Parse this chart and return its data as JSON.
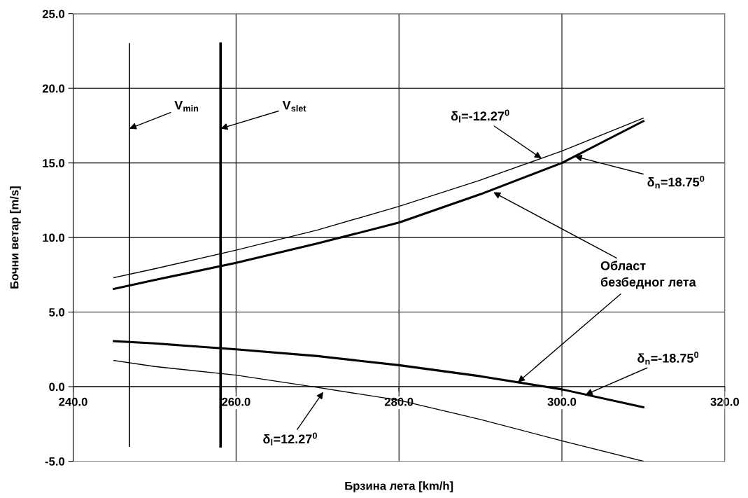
{
  "chart_data": {
    "type": "line",
    "xlabel": "Брзина лета [km/h]",
    "ylabel": "Бочни ветар [m/s]",
    "xlim": [
      240,
      320
    ],
    "ylim": [
      -5,
      25
    ],
    "xticks": [
      {
        "value": 240,
        "label": "240.0"
      },
      {
        "value": 260,
        "label": "260.0"
      },
      {
        "value": 280,
        "label": "280.0"
      },
      {
        "value": 300,
        "label": "300.0"
      },
      {
        "value": 320,
        "label": "320.0"
      }
    ],
    "yticks": [
      {
        "value": -5,
        "label": "-5.0"
      },
      {
        "value": 0,
        "label": "0.0"
      },
      {
        "value": 5,
        "label": "5.0"
      },
      {
        "value": 10,
        "label": "10.0"
      },
      {
        "value": 15,
        "label": "15.0"
      },
      {
        "value": 20,
        "label": "20.0"
      },
      {
        "value": 25,
        "label": "25.0"
      }
    ],
    "grid": true,
    "legend": false,
    "marker": "none",
    "line_style": "solid",
    "series": [
      {
        "color": "#000000",
        "x": [
          245,
          250,
          260,
          270,
          280,
          290,
          300,
          310
        ],
        "values": [
          7.31,
          7.9,
          9.15,
          10.5,
          12.09,
          13.85,
          15.8,
          18.0
        ]
      },
      {
        "color": "#000000",
        "x": [
          245,
          250,
          260,
          270,
          280,
          290,
          300,
          310
        ],
        "values": [
          6.55,
          7.15,
          8.3,
          9.6,
          11.0,
          12.9,
          15.0,
          17.8
        ]
      },
      {
        "color": "#000000",
        "x": [
          245,
          250,
          260,
          270,
          280,
          290,
          300,
          310
        ],
        "values": [
          3.05,
          2.9,
          2.5,
          2.05,
          1.44,
          0.7,
          -0.18,
          -1.38
        ]
      },
      {
        "color": "#000000",
        "x": [
          245,
          250,
          260,
          270,
          280,
          290,
          300,
          310
        ],
        "values": [
          1.75,
          1.35,
          0.77,
          -0.05,
          -0.91,
          -2.2,
          -3.63,
          -5.0
        ]
      },
      {
        "color": "#000000",
        "x": [
          246.9,
          246.9
        ],
        "values": [
          23,
          -4
        ]
      },
      {
        "color": "#000000",
        "x": [
          258.1,
          258.1
        ],
        "values": [
          23,
          -4
        ]
      }
    ],
    "annotations": [
      {
        "text": "V$_{min}$",
        "x": 246.9,
        "y": 17.3
      },
      {
        "text": "V$_{slet}$",
        "x": 258.1,
        "y": 17.3
      },
      {
        "text": "δ$_{l}$=-12.27$^{0}$",
        "x": 297.5,
        "y": 15.3
      },
      {
        "text": "δ$_{n}$=18.75$^{0}$",
        "x": 301.6,
        "y": 15.44
      },
      {
        "text": "Област\nбезбедног лета",
        "x": 291.6,
        "y": 13.03
      },
      {
        "text": "δ$_{n}$=-18.75$^{0}$",
        "x": 302.9,
        "y": -0.54
      },
      {
        "text": "δ$_{l}$=12.27$^{0}$",
        "x": 270.7,
        "y": -0.35
      }
    ]
  }
}
